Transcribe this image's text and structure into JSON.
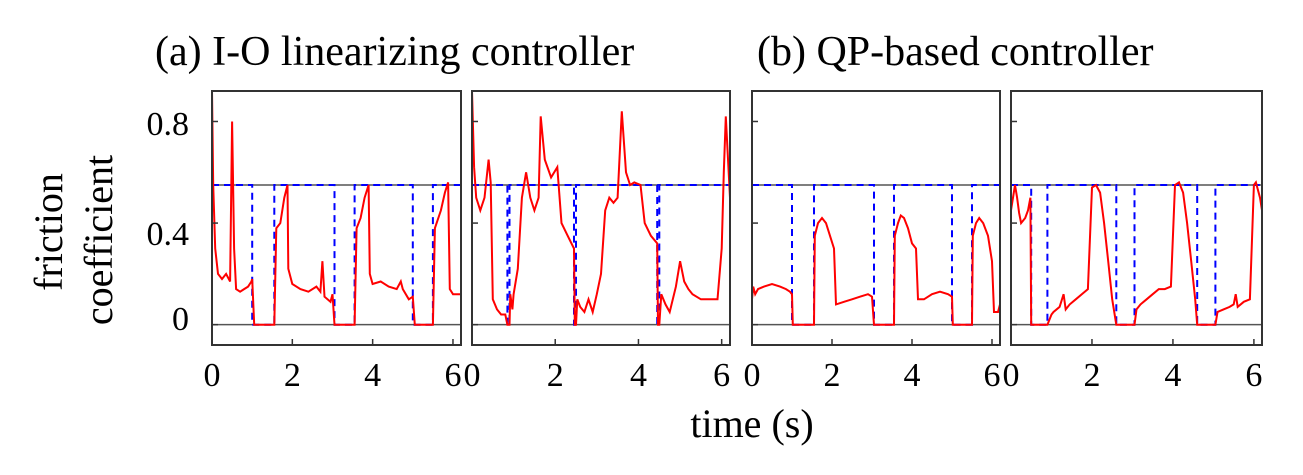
{
  "chart_data": {
    "type": "line",
    "ylabel_lines": [
      "friction",
      "coefficient"
    ],
    "xlabel": "time (s)",
    "group_titles": [
      "(a) I-O linearizing controller",
      "(b) QP-based controller"
    ],
    "xlim": [
      0,
      6.2
    ],
    "ylim": [
      -0.08,
      0.92
    ],
    "x_ticks": [
      0,
      2,
      4,
      6
    ],
    "y_ticks": [
      0,
      0.4,
      0.8
    ],
    "y_tick_labels": [
      "0",
      "0.4",
      "0.8"
    ],
    "friction_limit": 0.55,
    "colors": {
      "friction": "#ff0000",
      "stance": "#0000ff",
      "reference": "#555555",
      "frame": "#333333"
    },
    "panels": [
      {
        "stance_dips": [
          [
            1.0,
            1.55
          ],
          [
            3.05,
            3.55
          ],
          [
            5.0,
            5.5
          ]
        ],
        "friction": [
          [
            0,
            0.92
          ],
          [
            0.03,
            0.55
          ],
          [
            0.08,
            0.3
          ],
          [
            0.15,
            0.2
          ],
          [
            0.25,
            0.18
          ],
          [
            0.35,
            0.2
          ],
          [
            0.45,
            0.17
          ],
          [
            0.5,
            0.8
          ],
          [
            0.55,
            0.3
          ],
          [
            0.6,
            0.14
          ],
          [
            0.7,
            0.13
          ],
          [
            0.8,
            0.14
          ],
          [
            0.9,
            0.15
          ],
          [
            0.98,
            0.17
          ],
          [
            1.0,
            0.18
          ],
          [
            1.05,
            0.0
          ],
          [
            1.55,
            0.0
          ],
          [
            1.6,
            0.38
          ],
          [
            1.7,
            0.4
          ],
          [
            1.8,
            0.5
          ],
          [
            1.88,
            0.55
          ],
          [
            1.9,
            0.22
          ],
          [
            2.0,
            0.16
          ],
          [
            2.2,
            0.14
          ],
          [
            2.4,
            0.13
          ],
          [
            2.6,
            0.15
          ],
          [
            2.7,
            0.13
          ],
          [
            2.75,
            0.25
          ],
          [
            2.8,
            0.11
          ],
          [
            2.95,
            0.09
          ],
          [
            3.0,
            0.12
          ],
          [
            3.05,
            0.0
          ],
          [
            3.55,
            0.0
          ],
          [
            3.6,
            0.38
          ],
          [
            3.7,
            0.42
          ],
          [
            3.8,
            0.5
          ],
          [
            3.9,
            0.55
          ],
          [
            3.93,
            0.2
          ],
          [
            4.0,
            0.16
          ],
          [
            4.2,
            0.17
          ],
          [
            4.4,
            0.15
          ],
          [
            4.6,
            0.14
          ],
          [
            4.7,
            0.17
          ],
          [
            4.75,
            0.14
          ],
          [
            4.9,
            0.1
          ],
          [
            5.0,
            0.11
          ],
          [
            5.05,
            0.0
          ],
          [
            5.5,
            0.0
          ],
          [
            5.55,
            0.38
          ],
          [
            5.7,
            0.45
          ],
          [
            5.8,
            0.52
          ],
          [
            5.88,
            0.56
          ],
          [
            5.92,
            0.14
          ],
          [
            6.0,
            0.12
          ],
          [
            6.2,
            0.12
          ]
        ]
      },
      {
        "stance_dips": [
          [
            0.85,
            0.9
          ],
          [
            2.45,
            2.5
          ],
          [
            4.45,
            4.5
          ]
        ],
        "friction": [
          [
            0,
            0.92
          ],
          [
            0.05,
            0.62
          ],
          [
            0.1,
            0.5
          ],
          [
            0.2,
            0.45
          ],
          [
            0.3,
            0.5
          ],
          [
            0.4,
            0.65
          ],
          [
            0.45,
            0.56
          ],
          [
            0.5,
            0.1
          ],
          [
            0.6,
            0.06
          ],
          [
            0.7,
            0.04
          ],
          [
            0.8,
            0.04
          ],
          [
            0.85,
            0.0
          ],
          [
            0.9,
            0.0
          ],
          [
            0.92,
            0.12
          ],
          [
            0.97,
            0.06
          ],
          [
            1.0,
            0.12
          ],
          [
            1.1,
            0.22
          ],
          [
            1.2,
            0.5
          ],
          [
            1.3,
            0.6
          ],
          [
            1.4,
            0.5
          ],
          [
            1.5,
            0.45
          ],
          [
            1.6,
            0.5
          ],
          [
            1.65,
            0.82
          ],
          [
            1.75,
            0.65
          ],
          [
            1.9,
            0.58
          ],
          [
            2.05,
            0.62
          ],
          [
            2.15,
            0.4
          ],
          [
            2.3,
            0.35
          ],
          [
            2.45,
            0.3
          ],
          [
            2.47,
            0.0
          ],
          [
            2.5,
            0.0
          ],
          [
            2.53,
            0.1
          ],
          [
            2.6,
            0.07
          ],
          [
            2.7,
            0.05
          ],
          [
            2.8,
            0.1
          ],
          [
            2.9,
            0.05
          ],
          [
            3.0,
            0.12
          ],
          [
            3.1,
            0.2
          ],
          [
            3.2,
            0.45
          ],
          [
            3.3,
            0.5
          ],
          [
            3.4,
            0.48
          ],
          [
            3.5,
            0.5
          ],
          [
            3.6,
            0.84
          ],
          [
            3.7,
            0.6
          ],
          [
            3.8,
            0.55
          ],
          [
            3.9,
            0.56
          ],
          [
            4.05,
            0.55
          ],
          [
            4.15,
            0.4
          ],
          [
            4.3,
            0.35
          ],
          [
            4.45,
            0.32
          ],
          [
            4.47,
            0.0
          ],
          [
            4.5,
            0.0
          ],
          [
            4.55,
            0.12
          ],
          [
            4.65,
            0.08
          ],
          [
            4.75,
            0.05
          ],
          [
            4.9,
            0.15
          ],
          [
            5.0,
            0.25
          ],
          [
            5.1,
            0.17
          ],
          [
            5.2,
            0.14
          ],
          [
            5.3,
            0.12
          ],
          [
            5.5,
            0.1
          ],
          [
            5.6,
            0.1
          ],
          [
            5.7,
            0.1
          ],
          [
            5.8,
            0.1
          ],
          [
            5.9,
            0.1
          ],
          [
            6.0,
            0.3
          ],
          [
            6.05,
            0.6
          ],
          [
            6.1,
            0.82
          ],
          [
            6.2,
            0.5
          ]
        ]
      },
      {
        "stance_dips": [
          [
            1.0,
            1.55
          ],
          [
            3.05,
            3.55
          ],
          [
            5.0,
            5.5
          ]
        ],
        "friction": [
          [
            0,
            0.1
          ],
          [
            0.03,
            0.15
          ],
          [
            0.08,
            0.12
          ],
          [
            0.15,
            0.14
          ],
          [
            0.3,
            0.15
          ],
          [
            0.5,
            0.16
          ],
          [
            0.7,
            0.15
          ],
          [
            0.85,
            0.14
          ],
          [
            0.95,
            0.13
          ],
          [
            1.0,
            0.12
          ],
          [
            1.02,
            0.0
          ],
          [
            1.55,
            0.0
          ],
          [
            1.57,
            0.35
          ],
          [
            1.65,
            0.4
          ],
          [
            1.75,
            0.42
          ],
          [
            1.85,
            0.4
          ],
          [
            1.95,
            0.35
          ],
          [
            2.05,
            0.3
          ],
          [
            2.1,
            0.08
          ],
          [
            2.3,
            0.09
          ],
          [
            2.5,
            0.1
          ],
          [
            2.7,
            0.11
          ],
          [
            2.9,
            0.12
          ],
          [
            3.0,
            0.11
          ],
          [
            3.05,
            0.0
          ],
          [
            3.55,
            0.0
          ],
          [
            3.57,
            0.35
          ],
          [
            3.65,
            0.4
          ],
          [
            3.72,
            0.43
          ],
          [
            3.8,
            0.42
          ],
          [
            3.9,
            0.38
          ],
          [
            4.0,
            0.32
          ],
          [
            4.1,
            0.3
          ],
          [
            4.15,
            0.1
          ],
          [
            4.3,
            0.1
          ],
          [
            4.5,
            0.12
          ],
          [
            4.7,
            0.13
          ],
          [
            4.9,
            0.12
          ],
          [
            5.0,
            0.11
          ],
          [
            5.02,
            0.0
          ],
          [
            5.5,
            0.0
          ],
          [
            5.52,
            0.35
          ],
          [
            5.6,
            0.4
          ],
          [
            5.68,
            0.42
          ],
          [
            5.78,
            0.4
          ],
          [
            5.9,
            0.35
          ],
          [
            6.0,
            0.25
          ],
          [
            6.05,
            0.05
          ],
          [
            6.15,
            0.05
          ],
          [
            6.2,
            0.08
          ]
        ]
      },
      {
        "stance_dips": [
          [
            0.5,
            0.9
          ],
          [
            2.6,
            3.05
          ],
          [
            4.6,
            5.05
          ]
        ],
        "friction": [
          [
            0,
            0.45
          ],
          [
            0.05,
            0.5
          ],
          [
            0.1,
            0.55
          ],
          [
            0.15,
            0.5
          ],
          [
            0.2,
            0.44
          ],
          [
            0.25,
            0.4
          ],
          [
            0.35,
            0.42
          ],
          [
            0.42,
            0.45
          ],
          [
            0.48,
            0.5
          ],
          [
            0.5,
            0.0
          ],
          [
            0.9,
            0.0
          ],
          [
            1.0,
            0.04
          ],
          [
            1.05,
            0.05
          ],
          [
            1.2,
            0.07
          ],
          [
            1.3,
            0.12
          ],
          [
            1.35,
            0.06
          ],
          [
            1.45,
            0.08
          ],
          [
            1.6,
            0.1
          ],
          [
            1.75,
            0.12
          ],
          [
            1.9,
            0.14
          ],
          [
            2.0,
            0.54
          ],
          [
            2.1,
            0.55
          ],
          [
            2.2,
            0.52
          ],
          [
            2.3,
            0.4
          ],
          [
            2.4,
            0.25
          ],
          [
            2.5,
            0.1
          ],
          [
            2.6,
            0.0
          ],
          [
            3.05,
            0.0
          ],
          [
            3.1,
            0.06
          ],
          [
            3.2,
            0.08
          ],
          [
            3.35,
            0.1
          ],
          [
            3.5,
            0.12
          ],
          [
            3.65,
            0.14
          ],
          [
            3.8,
            0.14
          ],
          [
            3.95,
            0.15
          ],
          [
            4.05,
            0.55
          ],
          [
            4.15,
            0.56
          ],
          [
            4.25,
            0.52
          ],
          [
            4.35,
            0.4
          ],
          [
            4.45,
            0.25
          ],
          [
            4.55,
            0.1
          ],
          [
            4.6,
            0.0
          ],
          [
            5.05,
            0.0
          ],
          [
            5.1,
            0.05
          ],
          [
            5.25,
            0.06
          ],
          [
            5.4,
            0.07
          ],
          [
            5.5,
            0.08
          ],
          [
            5.55,
            0.12
          ],
          [
            5.6,
            0.07
          ],
          [
            5.75,
            0.09
          ],
          [
            5.9,
            0.1
          ],
          [
            6.0,
            0.55
          ],
          [
            6.05,
            0.56
          ],
          [
            6.15,
            0.5
          ],
          [
            6.2,
            0.45
          ]
        ]
      }
    ]
  }
}
